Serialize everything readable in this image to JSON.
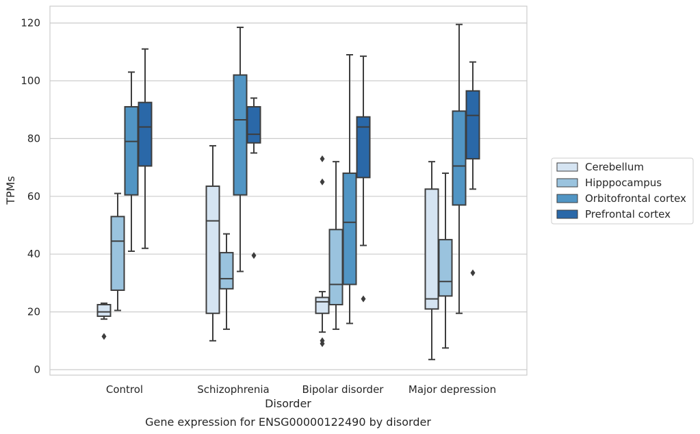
{
  "caption": "Gene expression for ENSG00000122490 by disorder",
  "chart_data": {
    "type": "boxplot",
    "xlabel": "Disorder",
    "ylabel": "TPMs",
    "ylim": [
      -2,
      126
    ],
    "yticks": [
      0,
      20,
      40,
      60,
      80,
      100,
      120
    ],
    "grid": "horizontal",
    "legend_position": "right",
    "categories": [
      "Control",
      "Schizophrenia",
      "Bipolar disorder",
      "Major depression"
    ],
    "series": [
      {
        "name": "Cerebellum",
        "color": "#d5e4f2",
        "boxes": [
          {
            "whisker_low": 17.5,
            "q1": 18.5,
            "median": 20,
            "q3": 22.5,
            "whisker_high": 23,
            "outliers": [
              11.5
            ]
          },
          {
            "whisker_low": 10,
            "q1": 19.5,
            "median": 51.5,
            "q3": 63.5,
            "whisker_high": 77.5,
            "outliers": []
          },
          {
            "whisker_low": 13,
            "q1": 19.5,
            "median": 23.5,
            "q3": 25,
            "whisker_high": 27,
            "outliers": [
              9,
              10,
              65,
              73
            ]
          },
          {
            "whisker_low": 3.5,
            "q1": 21,
            "median": 24.5,
            "q3": 62.5,
            "whisker_high": 72,
            "outliers": []
          }
        ]
      },
      {
        "name": "Hipppocampus",
        "color": "#9ac3de",
        "boxes": [
          {
            "whisker_low": 20.5,
            "q1": 27.5,
            "median": 44.5,
            "q3": 53,
            "whisker_high": 61,
            "outliers": []
          },
          {
            "whisker_low": 14,
            "q1": 28,
            "median": 31.5,
            "q3": 40.5,
            "whisker_high": 47,
            "outliers": []
          },
          {
            "whisker_low": 14,
            "q1": 22.5,
            "median": 29.5,
            "q3": 48.5,
            "whisker_high": 72,
            "outliers": []
          },
          {
            "whisker_low": 7.5,
            "q1": 25.5,
            "median": 30.5,
            "q3": 45,
            "whisker_high": 68,
            "outliers": []
          }
        ]
      },
      {
        "name": "Orbitofrontal cortex",
        "color": "#5195c4",
        "boxes": [
          {
            "whisker_low": 41,
            "q1": 60.5,
            "median": 79,
            "q3": 91,
            "whisker_high": 103,
            "outliers": []
          },
          {
            "whisker_low": 34,
            "q1": 60.5,
            "median": 86.5,
            "q3": 102,
            "whisker_high": 118.5,
            "outliers": []
          },
          {
            "whisker_low": 16,
            "q1": 29.5,
            "median": 51,
            "q3": 68,
            "whisker_high": 109,
            "outliers": []
          },
          {
            "whisker_low": 19.5,
            "q1": 57,
            "median": 70.5,
            "q3": 89.5,
            "whisker_high": 119.5,
            "outliers": []
          }
        ]
      },
      {
        "name": "Prefrontal cortex",
        "color": "#2a68a8",
        "boxes": [
          {
            "whisker_low": 42,
            "q1": 70.5,
            "median": 84,
            "q3": 92.5,
            "whisker_high": 111,
            "outliers": []
          },
          {
            "whisker_low": 75,
            "q1": 78.5,
            "median": 81.5,
            "q3": 91,
            "whisker_high": 94,
            "outliers": [
              39.5
            ]
          },
          {
            "whisker_low": 43,
            "q1": 66.5,
            "median": 84,
            "q3": 87.5,
            "whisker_high": 108.5,
            "outliers": [
              24.5
            ]
          },
          {
            "whisker_low": 62.5,
            "q1": 73,
            "median": 88,
            "q3": 96.5,
            "whisker_high": 106.5,
            "outliers": [
              33.5
            ]
          }
        ]
      }
    ]
  }
}
